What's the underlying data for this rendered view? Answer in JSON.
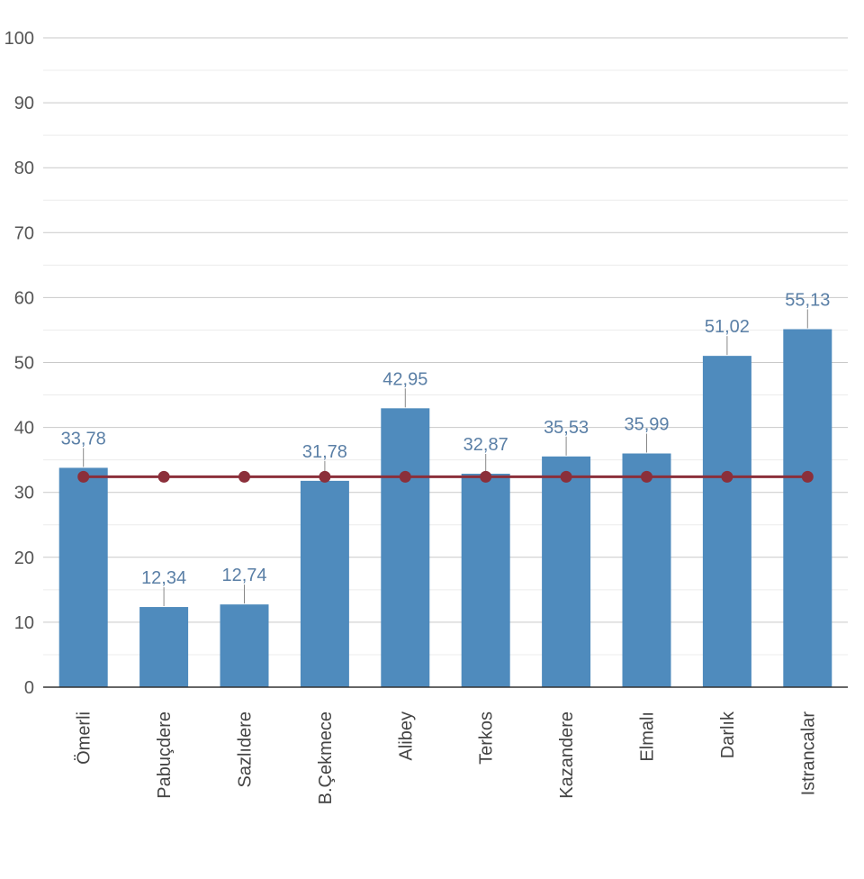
{
  "chart_data": {
    "type": "bar",
    "categories": [
      "Ömerli",
      "Pabuçdere",
      "Sazlıdere",
      "B.Çekmece",
      "Alibey",
      "Terkos",
      "Kazandere",
      "Elmalı",
      "Darlık",
      "Istrancalar"
    ],
    "series": [
      {
        "type": "bar",
        "values": [
          33.78,
          12.34,
          12.74,
          31.78,
          42.95,
          32.87,
          35.53,
          35.99,
          51.02,
          55.13
        ],
        "labels": [
          "33,78",
          "12,34",
          "12,74",
          "31,78",
          "42,95",
          "32,87",
          "35,53",
          "35,99",
          "51,02",
          "55,13"
        ],
        "color": "#4f8bbd"
      },
      {
        "type": "line",
        "values": [
          32.4,
          32.4,
          32.4,
          32.4,
          32.4,
          32.4,
          32.4,
          32.4,
          32.4,
          32.4
        ],
        "color": "#8b2f3a"
      }
    ],
    "ylim": [
      0,
      100
    ],
    "yticks": [
      0,
      10,
      20,
      30,
      40,
      50,
      60,
      70,
      80,
      90,
      100
    ],
    "ytick_labels": [
      "0",
      "10",
      "20",
      "30",
      "40",
      "50",
      "60",
      "70",
      "80",
      "90",
      "100"
    ],
    "grid": true,
    "minor_grid": true,
    "title": "",
    "xlabel": "",
    "ylabel": ""
  }
}
